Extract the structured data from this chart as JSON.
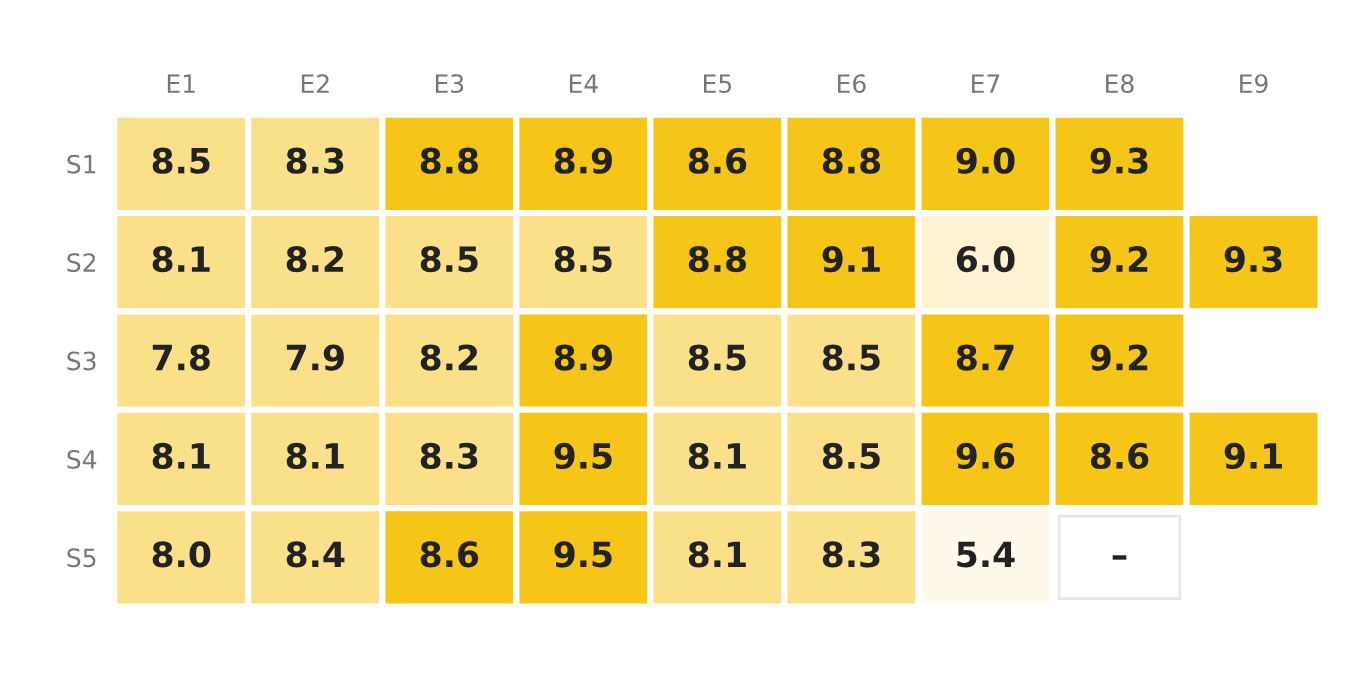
{
  "chart_data": {
    "type": "heatmap",
    "categories": [
      "E1",
      "E2",
      "E3",
      "E4",
      "E5",
      "E6",
      "E7",
      "E8",
      "E9"
    ],
    "y_categories": [
      "S1",
      "S2",
      "S3",
      "S4",
      "S5"
    ],
    "cells": [
      [
        8.5,
        8.3,
        8.8,
        8.9,
        8.6,
        8.8,
        9.0,
        9.3,
        null
      ],
      [
        8.1,
        8.2,
        8.5,
        8.5,
        8.8,
        9.1,
        6.0,
        9.2,
        9.3
      ],
      [
        7.8,
        7.9,
        8.2,
        8.9,
        8.5,
        8.5,
        8.7,
        9.2,
        null
      ],
      [
        8.1,
        8.1,
        8.3,
        9.5,
        8.1,
        8.5,
        9.6,
        8.6,
        9.1
      ],
      [
        8.0,
        8.4,
        8.6,
        9.5,
        8.1,
        8.3,
        5.4,
        null,
        null
      ]
    ],
    "cell_labels": [
      [
        "8.5",
        "8.3",
        "8.8",
        "8.9",
        "8.6",
        "8.8",
        "9.0",
        "9.3",
        null
      ],
      [
        "8.1",
        "8.2",
        "8.5",
        "8.5",
        "8.8",
        "9.1",
        "6.0",
        "9.2",
        "9.3"
      ],
      [
        "7.8",
        "7.9",
        "8.2",
        "8.9",
        "8.5",
        "8.5",
        "8.7",
        "9.2",
        null
      ],
      [
        "8.1",
        "8.1",
        "8.3",
        "9.5",
        "8.1",
        "8.5",
        "9.6",
        "8.6",
        "9.1"
      ],
      [
        "8.0",
        "8.4",
        "8.6",
        "9.5",
        "8.1",
        "8.3",
        "5.4",
        "–",
        null
      ]
    ]
  }
}
